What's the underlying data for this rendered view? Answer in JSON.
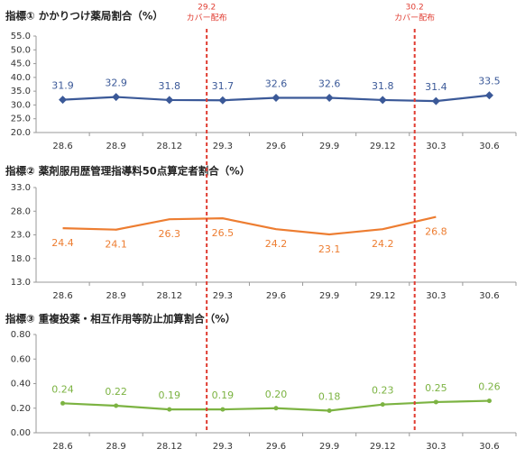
{
  "chart_data": [
    {
      "type": "line",
      "title": "指標① かかりつけ薬局割合（%）",
      "categories": [
        "28.6",
        "28.9",
        "28.12",
        "29.3",
        "29.6",
        "29.9",
        "29.12",
        "30.3",
        "30.6"
      ],
      "values": [
        31.9,
        32.9,
        31.8,
        31.7,
        32.6,
        32.6,
        31.8,
        31.4,
        33.5
      ],
      "color": "#3b5998",
      "marker": "diamond",
      "ylim": [
        20,
        55
      ],
      "yticks": [
        {
          "value": 20,
          "label": "20.0"
        },
        {
          "value": 25,
          "label": "25.0"
        },
        {
          "value": 30,
          "label": "30.0"
        },
        {
          "value": 35,
          "label": "35.0"
        },
        {
          "value": 40,
          "label": "40.0"
        },
        {
          "value": 45,
          "label": "45.0"
        },
        {
          "value": 50,
          "label": "50.0"
        },
        {
          "value": 55,
          "label": "55.0"
        }
      ]
    },
    {
      "type": "line",
      "title": "指標② 薬剤服用歴管理指導料50点算定者割合（%）",
      "categories": [
        "28.6",
        "28.9",
        "28.12",
        "29.3",
        "29.6",
        "29.9",
        "29.12",
        "30.3",
        "30.6"
      ],
      "values": [
        24.4,
        24.1,
        26.3,
        26.5,
        24.2,
        23.1,
        24.2,
        26.8,
        null
      ],
      "color": "#ed7d31",
      "ylim": [
        13,
        33
      ],
      "yticks": [
        {
          "value": 13,
          "label": "13.0"
        },
        {
          "value": 18,
          "label": "18.0"
        },
        {
          "value": 23,
          "label": "23.0"
        },
        {
          "value": 28,
          "label": "28.0"
        },
        {
          "value": 33,
          "label": "33.0"
        }
      ]
    },
    {
      "type": "line",
      "title": "指標③ 重複投薬・相互作用等防止加算割合（%）",
      "categories": [
        "28.6",
        "28.9",
        "28.12",
        "29.3",
        "29.6",
        "29.9",
        "29.12",
        "30.3",
        "30.6"
      ],
      "values": [
        0.24,
        0.22,
        0.19,
        0.19,
        0.2,
        0.18,
        0.23,
        0.25,
        0.26
      ],
      "value_labels": [
        "0.24",
        "0.22",
        "0.19",
        "0.19",
        "0.20",
        "0.18",
        "0.23",
        "0.25",
        "0.26"
      ],
      "color": "#7cb342",
      "marker": "circle",
      "ylim": [
        0,
        0.8
      ],
      "yticks": [
        {
          "value": 0,
          "label": "0.00"
        },
        {
          "value": 0.2,
          "label": "0.20"
        },
        {
          "value": 0.4,
          "label": "0.40"
        },
        {
          "value": 0.6,
          "label": "0.60"
        },
        {
          "value": 0.8,
          "label": "0.80"
        }
      ]
    }
  ],
  "annotations": [
    {
      "label": "29.2",
      "text": "カバー配布"
    },
    {
      "label": "30.2",
      "text": "カバー配布"
    }
  ]
}
